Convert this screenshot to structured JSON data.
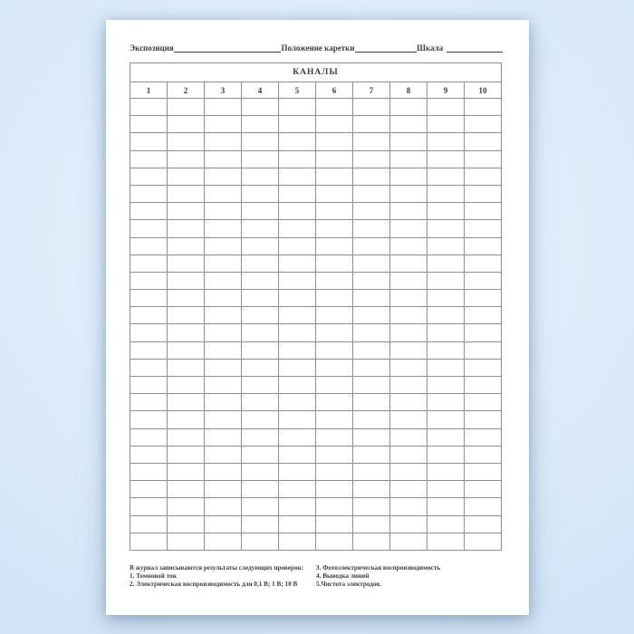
{
  "page": {
    "header": {
      "exposure_label": "Экспозиция",
      "carriage_label": "Положение каретки",
      "scale_label": "Шкала"
    },
    "table": {
      "title": "КАНАЛЫ",
      "columns": [
        "1",
        "2",
        "3",
        "4",
        "5",
        "6",
        "7",
        "8",
        "9",
        "10"
      ],
      "empty_rows": 26
    },
    "footer": {
      "intro": "В журнал записываются результаты следующих проверок:",
      "items_left": [
        "1. Темновой ток",
        "2. Электрическая воспроизводимость для 0,1 В; 1 В; 10 В"
      ],
      "items_right": [
        "3. Фотоэлектрическая воспроизводимость",
        "4. Выводка линий",
        "5.Чистота электродов."
      ]
    },
    "colors": {
      "ink": "#3c3c3c",
      "grid_line": "#8f8f8f",
      "grid_outer": "#5a5a5a",
      "paper": "#ffffff",
      "background_center": "#edf5fd",
      "background_edge": "#cfe2f7"
    }
  }
}
